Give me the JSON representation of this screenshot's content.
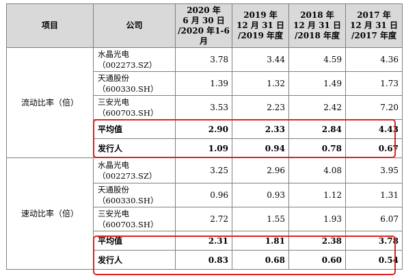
{
  "table": {
    "headers": {
      "item": "项目",
      "company": "公司",
      "periods": [
        [
          "2020 年",
          "6 月 30 日",
          "/2020 年1-6月"
        ],
        [
          "2019 年",
          "12 月 31 日",
          "/2019 年度"
        ],
        [
          "2018 年",
          "12 月 31 日",
          "/2018 年度"
        ],
        [
          "2017 年",
          "12 月 31 日",
          "/2017 年度"
        ]
      ]
    },
    "sections": [
      {
        "label": "流动比率（倍）",
        "rows": [
          {
            "company": [
              "水晶光电",
              "（002273.SZ）"
            ],
            "values": [
              "3.78",
              "3.44",
              "4.59",
              "4.36"
            ]
          },
          {
            "company": [
              "天通股份",
              "（600330.SH）"
            ],
            "values": [
              "1.39",
              "1.32",
              "1.49",
              "1.73"
            ]
          },
          {
            "company": [
              "三安光电",
              "（600703.SH）"
            ],
            "values": [
              "3.53",
              "2.23",
              "2.42",
              "7.20"
            ]
          },
          {
            "company": [
              "平均值"
            ],
            "values": [
              "2.90",
              "2.33",
              "2.84",
              "4.43"
            ]
          },
          {
            "company": [
              "发行人"
            ],
            "values": [
              "1.09",
              "0.94",
              "0.78",
              "0.67"
            ]
          }
        ]
      },
      {
        "label": "速动比率（倍）",
        "rows": [
          {
            "company": [
              "水晶光电",
              "（002273.SZ）"
            ],
            "values": [
              "3.25",
              "2.96",
              "4.08",
              "3.95"
            ]
          },
          {
            "company": [
              "天通股份",
              "（600330.SH）"
            ],
            "values": [
              "0.96",
              "0.93",
              "1.12",
              "1.31"
            ]
          },
          {
            "company": [
              "三安光电",
              "（600703.SH）"
            ],
            "values": [
              "2.72",
              "1.55",
              "1.93",
              "6.07"
            ]
          },
          {
            "company": [
              "平均值"
            ],
            "values": [
              "2.31",
              "1.81",
              "2.38",
              "3.78"
            ]
          },
          {
            "company": [
              "发行人"
            ],
            "values": [
              "0.83",
              "0.68",
              "0.60",
              "0.54"
            ]
          }
        ]
      }
    ]
  },
  "highlight_color": "#e02020"
}
